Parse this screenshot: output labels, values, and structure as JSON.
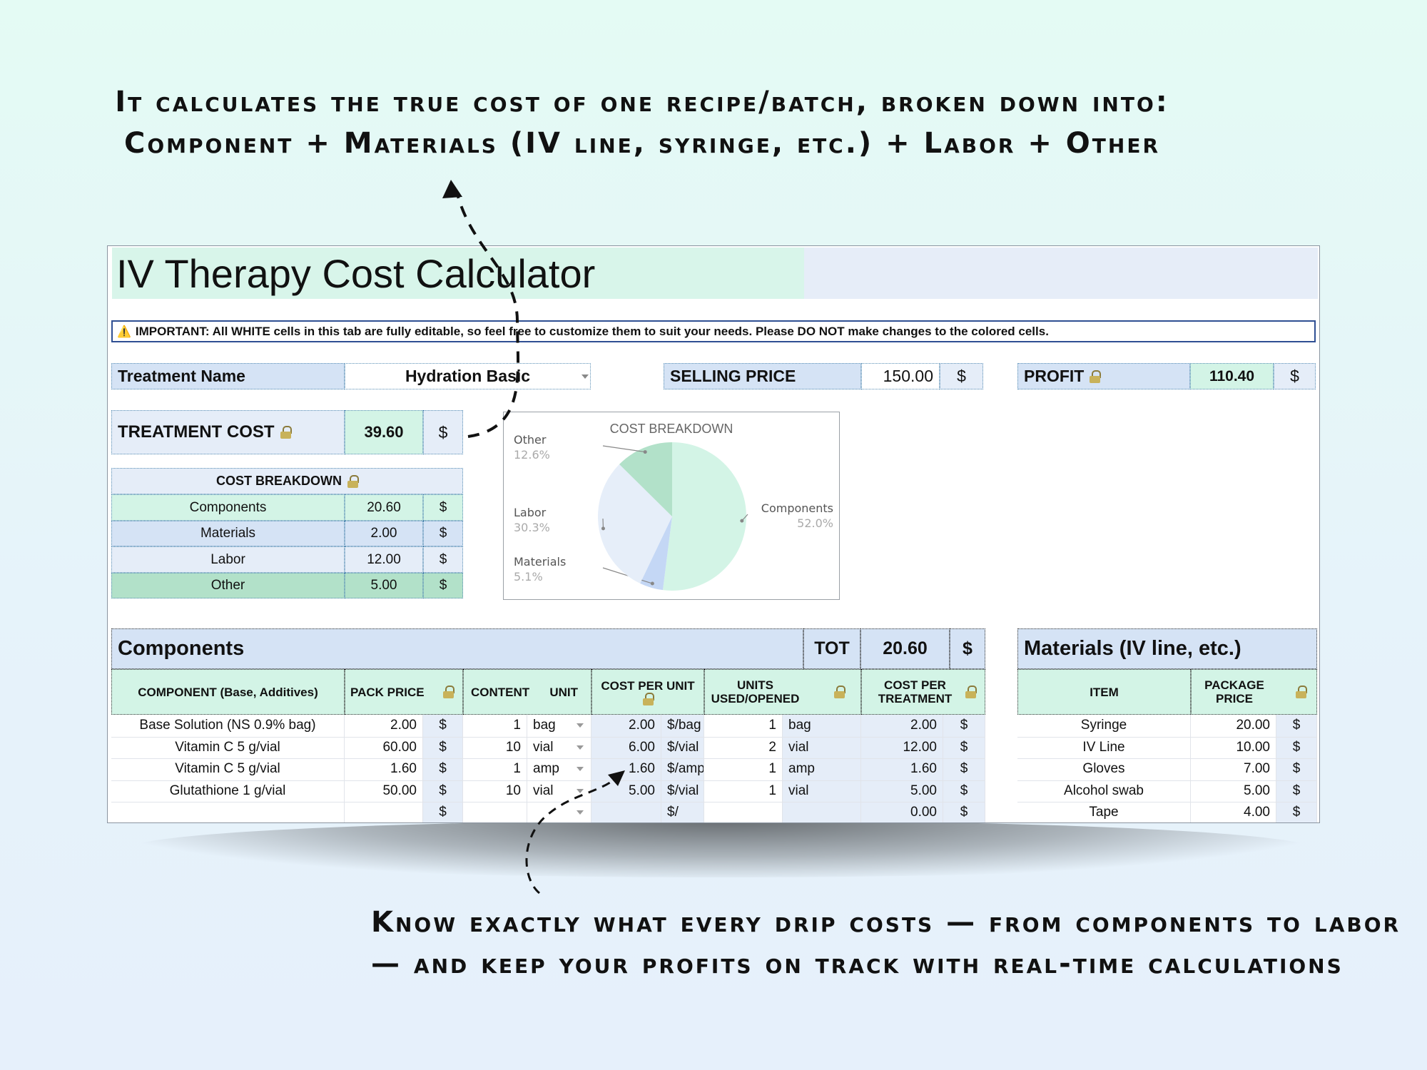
{
  "captions": {
    "top_line1": "It calculates the true cost of one recipe/batch, broken down into:",
    "top_line2": "Component + Materials (IV line, syringe, etc.) + Labor + Other",
    "bottom_line1": "Know exactly what every drip costs — from components to labor",
    "bottom_line2": "— and keep your profits on track with real-time calculations"
  },
  "sheet": {
    "title": "IV Therapy Cost Calculator",
    "notice_icon": "⚠️",
    "notice": "IMPORTANT: All WHITE cells in this tab are fully editable, so feel free to customize them to suit your needs. Please DO NOT make changes to the colored cells.",
    "treatment_name_label": "Treatment Name",
    "treatment_name_value": "Hydration Basic",
    "selling_price_label": "SELLING PRICE",
    "selling_price_value": "150.00",
    "profit_label": "PROFIT",
    "profit_value": "110.40",
    "currency": "$",
    "treatment_cost_label": "TREATMENT COST",
    "treatment_cost_value": "39.60",
    "breakdown_title": "COST BREAKDOWN",
    "breakdown": [
      {
        "label": "Components",
        "value": "20.60"
      },
      {
        "label": "Materials",
        "value": "2.00"
      },
      {
        "label": "Labor",
        "value": "12.00"
      },
      {
        "label": "Other",
        "value": "5.00"
      }
    ]
  },
  "chart_data": {
    "type": "pie",
    "title": "COST BREAKDOWN",
    "slices": [
      {
        "label": "Components",
        "value": 52.0,
        "pct_label": "52.0%",
        "color": "#d3f4e6"
      },
      {
        "label": "Materials",
        "value": 5.1,
        "pct_label": "5.1%",
        "color": "#c4d7f5"
      },
      {
        "label": "Labor",
        "value": 30.3,
        "pct_label": "30.3%",
        "color": "#e6eef9"
      },
      {
        "label": "Other",
        "value": 12.6,
        "pct_label": "12.6%",
        "color": "#b2e1c9"
      }
    ]
  },
  "components": {
    "title": "Components",
    "tot_label": "TOT",
    "tot_value": "20.60",
    "headers": {
      "component": "COMPONENT (Base, Additives)",
      "pack_price": "PACK PRICE",
      "content": "CONTENT",
      "unit": "UNIT",
      "cost_per_unit": "COST PER UNIT",
      "units_used": "UNITS USED/OPENED",
      "cost_per_treatment": "COST PER TREATMENT"
    },
    "rows": [
      {
        "name": "Base Solution (NS 0.9% bag)",
        "pack_price": "2.00",
        "content": "1",
        "unit": "bag",
        "cpu": "2.00",
        "cpu_unit": "$/bag",
        "used": "1",
        "used_unit": "bag",
        "cpt": "2.00"
      },
      {
        "name": "Vitamin C 5 g/vial",
        "pack_price": "60.00",
        "content": "10",
        "unit": "vial",
        "cpu": "6.00",
        "cpu_unit": "$/vial",
        "used": "2",
        "used_unit": "vial",
        "cpt": "12.00"
      },
      {
        "name": "Vitamin C 5 g/vial",
        "pack_price": "1.60",
        "content": "1",
        "unit": "amp",
        "cpu": "1.60",
        "cpu_unit": "$/amp",
        "used": "1",
        "used_unit": "amp",
        "cpt": "1.60"
      },
      {
        "name": "Glutathione 1 g/vial",
        "pack_price": "50.00",
        "content": "10",
        "unit": "vial",
        "cpu": "5.00",
        "cpu_unit": "$/vial",
        "used": "1",
        "used_unit": "vial",
        "cpt": "5.00"
      },
      {
        "name": "",
        "pack_price": "",
        "content": "",
        "unit": "",
        "cpu": "",
        "cpu_unit": "$/",
        "used": "",
        "used_unit": "",
        "cpt": "0.00"
      }
    ]
  },
  "materials": {
    "title": "Materials (IV line, etc.)",
    "headers": {
      "item": "ITEM",
      "package_price": "PACKAGE PRICE"
    },
    "rows": [
      {
        "item": "Syringe",
        "price": "20.00"
      },
      {
        "item": "IV Line",
        "price": "10.00"
      },
      {
        "item": "Gloves",
        "price": "7.00"
      },
      {
        "item": "Alcohol swab",
        "price": "5.00"
      },
      {
        "item": "Tape",
        "price": "4.00"
      }
    ]
  }
}
